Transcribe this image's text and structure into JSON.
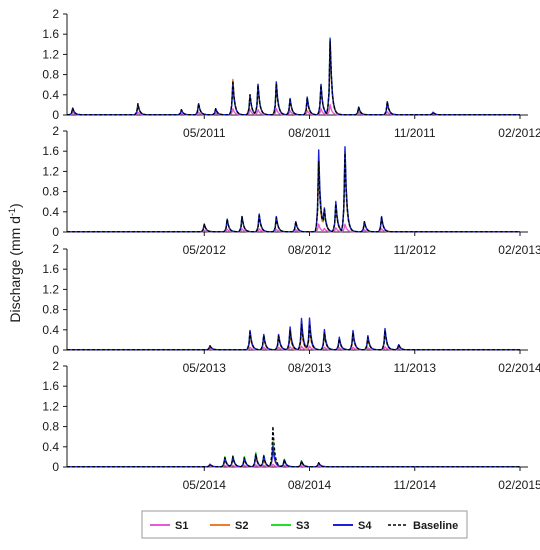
{
  "chart_data": {
    "type": "line",
    "ylabel": "Discharge (mm d",
    "ylabel_superscript": "-1",
    "ylabel_close": ")",
    "legend": {
      "placement": "bottom",
      "entries": [
        {
          "name": "S1",
          "color": "#e75bd3",
          "dashed": false
        },
        {
          "name": "S2",
          "color": "#f07b2a",
          "dashed": false
        },
        {
          "name": "S3",
          "color": "#22e02a",
          "dashed": false
        },
        {
          "name": "S4",
          "color": "#1f1fd8",
          "dashed": false
        },
        {
          "name": "Baseline",
          "color": "#000000",
          "dashed": true
        }
      ]
    },
    "panels": [
      {
        "year": 2011,
        "ylim": [
          0,
          2
        ],
        "yticks": [
          "0",
          "0.4",
          "0.8",
          "1.2",
          "1.6",
          "2"
        ],
        "xticks": [
          "05/2011",
          "08/2011",
          "11/2011",
          "02/2012"
        ],
        "peaks": [
          {
            "day": 5,
            "S1": 0.05,
            "S2": 0.13,
            "S3": 0.13,
            "S4": 0.13,
            "Baseline": 0.13
          },
          {
            "day": 62,
            "S1": 0.05,
            "S2": 0.22,
            "S3": 0.2,
            "S4": 0.2,
            "Baseline": 0.22
          },
          {
            "day": 100,
            "S1": 0.03,
            "S2": 0.1,
            "S3": 0.1,
            "S4": 0.1,
            "Baseline": 0.1
          },
          {
            "day": 115,
            "S1": 0.05,
            "S2": 0.22,
            "S3": 0.22,
            "S4": 0.22,
            "Baseline": 0.22
          },
          {
            "day": 130,
            "S1": 0.04,
            "S2": 0.12,
            "S3": 0.12,
            "S4": 0.12,
            "Baseline": 0.12
          },
          {
            "day": 145,
            "S1": 0.12,
            "S2": 0.7,
            "S3": 0.62,
            "S4": 0.62,
            "Baseline": 0.68
          },
          {
            "day": 160,
            "S1": 0.1,
            "S2": 0.4,
            "S3": 0.38,
            "S4": 0.38,
            "Baseline": 0.4
          },
          {
            "day": 167,
            "S1": 0.1,
            "S2": 0.55,
            "S3": 0.6,
            "S4": 0.6,
            "Baseline": 0.58
          },
          {
            "day": 183,
            "S1": 0.12,
            "S2": 0.58,
            "S3": 0.65,
            "S4": 0.65,
            "Baseline": 0.62
          },
          {
            "day": 195,
            "S1": 0.08,
            "S2": 0.3,
            "S3": 0.32,
            "S4": 0.32,
            "Baseline": 0.3
          },
          {
            "day": 210,
            "S1": 0.08,
            "S2": 0.3,
            "S3": 0.35,
            "S4": 0.35,
            "Baseline": 0.32
          },
          {
            "day": 222,
            "S1": 0.12,
            "S2": 0.58,
            "S3": 0.6,
            "S4": 0.6,
            "Baseline": 0.58
          },
          {
            "day": 230,
            "S1": 0.2,
            "S2": 1.3,
            "S3": 1.52,
            "S4": 1.5,
            "Baseline": 1.45
          },
          {
            "day": 255,
            "S1": 0.05,
            "S2": 0.15,
            "S3": 0.15,
            "S4": 0.15,
            "Baseline": 0.15
          },
          {
            "day": 280,
            "S1": 0.06,
            "S2": 0.26,
            "S3": 0.26,
            "S4": 0.26,
            "Baseline": 0.26
          },
          {
            "day": 320,
            "S1": 0.02,
            "S2": 0.05,
            "S3": 0.05,
            "S4": 0.05,
            "Baseline": 0.05
          }
        ]
      },
      {
        "year": 2012,
        "ylim": [
          0,
          2
        ],
        "yticks": [
          "0",
          "0.4",
          "0.8",
          "1.2",
          "1.6",
          "2"
        ],
        "xticks": [
          "05/2012",
          "08/2012",
          "11/2012",
          "02/2013"
        ],
        "peaks": [
          {
            "day": 120,
            "S1": 0.03,
            "S2": 0.15,
            "S3": 0.15,
            "S4": 0.15,
            "Baseline": 0.15
          },
          {
            "day": 140,
            "S1": 0.05,
            "S2": 0.25,
            "S3": 0.25,
            "S4": 0.25,
            "Baseline": 0.25
          },
          {
            "day": 153,
            "S1": 0.06,
            "S2": 0.3,
            "S3": 0.3,
            "S4": 0.3,
            "Baseline": 0.3
          },
          {
            "day": 168,
            "S1": 0.06,
            "S2": 0.3,
            "S3": 0.35,
            "S4": 0.35,
            "Baseline": 0.32
          },
          {
            "day": 183,
            "S1": 0.05,
            "S2": 0.28,
            "S3": 0.3,
            "S4": 0.3,
            "Baseline": 0.28
          },
          {
            "day": 200,
            "S1": 0.04,
            "S2": 0.2,
            "S3": 0.2,
            "S4": 0.2,
            "Baseline": 0.2
          },
          {
            "day": 220,
            "S1": 0.15,
            "S2": 1.2,
            "S3": 1.5,
            "S4": 1.62,
            "Baseline": 1.4
          },
          {
            "day": 225,
            "S1": 0.06,
            "S2": 0.35,
            "S3": 0.38,
            "S4": 0.4,
            "Baseline": 0.38
          },
          {
            "day": 235,
            "S1": 0.08,
            "S2": 0.5,
            "S3": 0.58,
            "S4": 0.6,
            "Baseline": 0.55
          },
          {
            "day": 243,
            "S1": 0.15,
            "S2": 1.4,
            "S3": 1.6,
            "S4": 1.68,
            "Baseline": 1.55
          },
          {
            "day": 260,
            "S1": 0.04,
            "S2": 0.2,
            "S3": 0.2,
            "S4": 0.2,
            "Baseline": 0.2
          },
          {
            "day": 275,
            "S1": 0.06,
            "S2": 0.28,
            "S3": 0.3,
            "S4": 0.3,
            "Baseline": 0.28
          }
        ]
      },
      {
        "year": 2013,
        "ylim": [
          0,
          2
        ],
        "yticks": [
          "0",
          "0.4",
          "0.8",
          "1.2",
          "1.6",
          "2"
        ],
        "xticks": [
          "05/2013",
          "08/2013",
          "11/2013",
          "02/2014"
        ],
        "peaks": [
          {
            "day": 125,
            "S1": 0.02,
            "S2": 0.08,
            "S3": 0.08,
            "S4": 0.08,
            "Baseline": 0.08
          },
          {
            "day": 160,
            "S1": 0.05,
            "S2": 0.3,
            "S3": 0.38,
            "S4": 0.38,
            "Baseline": 0.35
          },
          {
            "day": 172,
            "S1": 0.05,
            "S2": 0.25,
            "S3": 0.3,
            "S4": 0.3,
            "Baseline": 0.28
          },
          {
            "day": 185,
            "S1": 0.05,
            "S2": 0.25,
            "S3": 0.3,
            "S4": 0.3,
            "Baseline": 0.28
          },
          {
            "day": 195,
            "S1": 0.06,
            "S2": 0.3,
            "S3": 0.4,
            "S4": 0.45,
            "Baseline": 0.38
          },
          {
            "day": 205,
            "S1": 0.07,
            "S2": 0.4,
            "S3": 0.55,
            "S4": 0.62,
            "Baseline": 0.5
          },
          {
            "day": 212,
            "S1": 0.07,
            "S2": 0.4,
            "S3": 0.52,
            "S4": 0.62,
            "Baseline": 0.5
          },
          {
            "day": 225,
            "S1": 0.05,
            "S2": 0.3,
            "S3": 0.35,
            "S4": 0.4,
            "Baseline": 0.34
          },
          {
            "day": 238,
            "S1": 0.04,
            "S2": 0.2,
            "S3": 0.22,
            "S4": 0.25,
            "Baseline": 0.22
          },
          {
            "day": 250,
            "S1": 0.05,
            "S2": 0.3,
            "S3": 0.35,
            "S4": 0.38,
            "Baseline": 0.34
          },
          {
            "day": 263,
            "S1": 0.04,
            "S2": 0.22,
            "S3": 0.25,
            "S4": 0.28,
            "Baseline": 0.25
          },
          {
            "day": 278,
            "S1": 0.06,
            "S2": 0.35,
            "S3": 0.4,
            "S4": 0.42,
            "Baseline": 0.38
          },
          {
            "day": 290,
            "S1": 0.03,
            "S2": 0.1,
            "S3": 0.1,
            "S4": 0.1,
            "Baseline": 0.1
          }
        ]
      },
      {
        "year": 2014,
        "ylim": [
          0,
          2
        ],
        "yticks": [
          "0",
          "0.4",
          "0.8",
          "1.2",
          "1.6",
          "2"
        ],
        "xticks": [
          "05/2014",
          "08/2014",
          "11/2014",
          "02/2015"
        ],
        "peaks": [
          {
            "day": 125,
            "S1": 0.01,
            "S2": 0.05,
            "S3": 0.05,
            "S4": 0.05,
            "Baseline": 0.05
          },
          {
            "day": 138,
            "S1": 0.03,
            "S2": 0.15,
            "S3": 0.2,
            "S4": 0.18,
            "Baseline": 0.18
          },
          {
            "day": 145,
            "S1": 0.03,
            "S2": 0.18,
            "S3": 0.22,
            "S4": 0.2,
            "Baseline": 0.2
          },
          {
            "day": 155,
            "S1": 0.03,
            "S2": 0.15,
            "S3": 0.2,
            "S4": 0.18,
            "Baseline": 0.18
          },
          {
            "day": 165,
            "S1": 0.04,
            "S2": 0.2,
            "S3": 0.28,
            "S4": 0.25,
            "Baseline": 0.25
          },
          {
            "day": 172,
            "S1": 0.03,
            "S2": 0.15,
            "S3": 0.22,
            "S4": 0.22,
            "Baseline": 0.2
          },
          {
            "day": 180,
            "S1": 0.05,
            "S2": 0.35,
            "S3": 0.5,
            "S4": 0.4,
            "Baseline": 0.8
          },
          {
            "day": 190,
            "S1": 0.03,
            "S2": 0.12,
            "S3": 0.15,
            "S4": 0.14,
            "Baseline": 0.14
          },
          {
            "day": 205,
            "S1": 0.02,
            "S2": 0.1,
            "S3": 0.12,
            "S4": 0.11,
            "Baseline": 0.11
          },
          {
            "day": 220,
            "S1": 0.02,
            "S2": 0.08,
            "S3": 0.08,
            "S4": 0.08,
            "Baseline": 0.08
          }
        ]
      }
    ]
  }
}
